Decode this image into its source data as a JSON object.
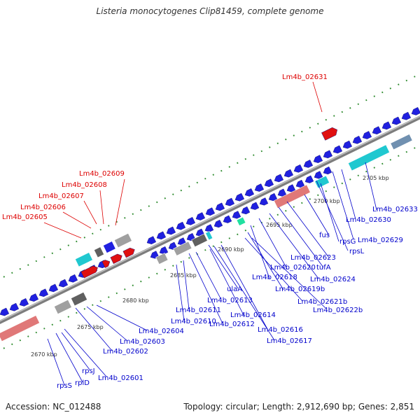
{
  "title": "Listeria monocytogenes Clip81459, complete genome",
  "footer": {
    "accession": "Accession: NC_012488",
    "topology": "Topology: circular; Length: 2,912,690 bp; Genes: 2,851"
  },
  "colors": {
    "backbone": "#8a8a8a",
    "forward_gene": "#2020e0",
    "reverse_gene": "#e01010",
    "rrna": "#e07878",
    "trna": "#20c8d0",
    "grey_feature": "#a0a0a0",
    "dark_feature": "#606060",
    "green_feature": "#20e0a0",
    "grid_dot": "#2e8b2e",
    "label_blue": "#0000cc",
    "label_red": "#dd0000"
  },
  "scale_labels": [
    "2670 kbp",
    "2675 kbp",
    "2680 kbp",
    "2685 kbp",
    "2690 kbp",
    "2695 kbp",
    "2700 kbp",
    "2705 kbp"
  ],
  "labels_red": [
    "Lm4b_02631",
    "Lm4b_02609",
    "Lm4b_02608",
    "Lm4b_02607",
    "Lm4b_02606",
    "Lm4b_02605"
  ],
  "labels_blue": [
    "Lm4b_02633",
    "Lm4b_02630",
    "Lm4b_02629",
    "rpsL",
    "rpsG",
    "fus",
    "Lm4b_02623",
    "tufA",
    "Lm4b_02624",
    "Lm4b_02620",
    "Lm4b_02618",
    "Lm4b_02619b",
    "Lm4b_02621b",
    "Lm4b_02622b",
    "ulaA",
    "Lm4b_02613",
    "Lm4b_02614",
    "Lm4b_02616",
    "Lm4b_02617",
    "Lm4b_02612",
    "Lm4b_02611",
    "Lm4b_02610",
    "Lm4b_02604",
    "Lm4b_02603",
    "Lm4b_02602",
    "Lm4b_02601",
    "rpsJ",
    "rplD",
    "rpsS"
  ]
}
